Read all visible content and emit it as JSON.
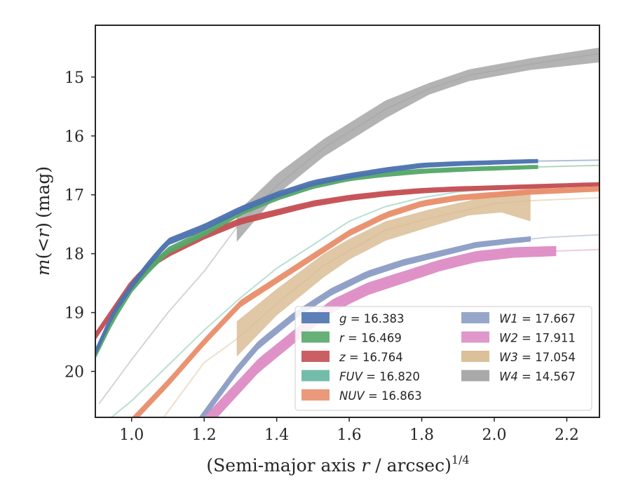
{
  "chart_data": {
    "type": "line",
    "xlabel": "(Semi-major axis r / arcsec)",
    "xlabel_var": "r",
    "xlabel_pre": "(Semi-major axis ",
    "xlabel_post": " / arcsec)",
    "xlabel_exp": "1/4",
    "ylabel_var": "m(<r)",
    "ylabel_m": "m",
    "ylabel_paren_open": "(",
    "ylabel_lt": "<",
    "ylabel_r": "r",
    "ylabel_paren_close": ")",
    "ylabel_unit": "(mag)",
    "xlim": [
      0.9,
      2.29
    ],
    "ylim": [
      20.78,
      14.12
    ],
    "y_inverted": true,
    "xticks": [
      "1.0",
      "1.2",
      "1.4",
      "1.6",
      "1.8",
      "2.0",
      "2.2"
    ],
    "xtick_values": [
      1.0,
      1.2,
      1.4,
      1.6,
      1.8,
      2.0,
      2.2
    ],
    "yticks": [
      "15",
      "16",
      "17",
      "18",
      "19",
      "20"
    ],
    "ytick_values": [
      15,
      16,
      17,
      18,
      19,
      20
    ],
    "grid": false,
    "legend_position": "lower-right",
    "legend_columns": 2,
    "series": [
      {
        "name": "g = 16.383",
        "band": "g",
        "mag": "16.383",
        "color": "#4c72b0",
        "points": [
          [
            0.9,
            19.68
          ],
          [
            0.95,
            19.0
          ],
          [
            1.0,
            18.55
          ],
          [
            1.05,
            18.15
          ],
          [
            1.1,
            17.8
          ],
          [
            1.2,
            17.55
          ],
          [
            1.3,
            17.25
          ],
          [
            1.4,
            17.0
          ],
          [
            1.5,
            16.8
          ],
          [
            1.6,
            16.68
          ],
          [
            1.7,
            16.58
          ],
          [
            1.8,
            16.5
          ],
          [
            1.9,
            16.47
          ],
          [
            2.0,
            16.45
          ],
          [
            2.1,
            16.43
          ],
          [
            2.29,
            16.41
          ]
        ],
        "width_mag": [
          0.06,
          0.03
        ],
        "solid_max_x": 2.12
      },
      {
        "name": "r = 16.469",
        "band": "r",
        "mag": "16.469",
        "color": "#55a868",
        "points": [
          [
            0.9,
            19.72
          ],
          [
            0.95,
            19.1
          ],
          [
            1.0,
            18.6
          ],
          [
            1.05,
            18.25
          ],
          [
            1.1,
            17.95
          ],
          [
            1.2,
            17.65
          ],
          [
            1.3,
            17.3
          ],
          [
            1.4,
            17.05
          ],
          [
            1.5,
            16.85
          ],
          [
            1.6,
            16.72
          ],
          [
            1.7,
            16.65
          ],
          [
            1.8,
            16.6
          ],
          [
            1.9,
            16.57
          ],
          [
            2.0,
            16.55
          ],
          [
            2.1,
            16.53
          ],
          [
            2.29,
            16.5
          ]
        ],
        "width_mag": [
          0.06,
          0.03
        ],
        "solid_max_x": 2.12
      },
      {
        "name": "z = 16.764",
        "band": "z",
        "mag": "16.764",
        "color": "#c44e52",
        "points": [
          [
            0.9,
            19.4
          ],
          [
            0.95,
            18.95
          ],
          [
            1.0,
            18.5
          ],
          [
            1.05,
            18.2
          ],
          [
            1.1,
            18.0
          ],
          [
            1.2,
            17.7
          ],
          [
            1.3,
            17.45
          ],
          [
            1.4,
            17.3
          ],
          [
            1.5,
            17.15
          ],
          [
            1.6,
            17.05
          ],
          [
            1.7,
            16.98
          ],
          [
            1.8,
            16.93
          ],
          [
            1.9,
            16.9
          ],
          [
            2.0,
            16.88
          ],
          [
            2.1,
            16.86
          ],
          [
            2.29,
            16.82
          ]
        ],
        "width_mag": [
          0.06,
          0.03
        ],
        "solid_max_x": 2.29
      },
      {
        "name": "FUV = 16.820",
        "band": "FUV",
        "mag": "16.820",
        "color": "#64b5a0",
        "points": [
          [
            0.9,
            21.0
          ],
          [
            1.0,
            20.5
          ],
          [
            1.1,
            19.9
          ],
          [
            1.2,
            19.3
          ],
          [
            1.3,
            18.75
          ],
          [
            1.4,
            18.25
          ],
          [
            1.5,
            17.85
          ],
          [
            1.6,
            17.45
          ],
          [
            1.7,
            17.2
          ],
          [
            1.8,
            17.05
          ],
          [
            1.9,
            16.95
          ],
          [
            2.0,
            16.9
          ],
          [
            2.1,
            16.87
          ],
          [
            2.29,
            16.84
          ]
        ],
        "width_mag": [
          0.05,
          0.03
        ],
        "solid_max_x": 0.0
      },
      {
        "name": "NUV = 16.863",
        "band": "NUV",
        "mag": "16.863",
        "color": "#e88e6c",
        "points": [
          [
            1.0,
            20.85
          ],
          [
            1.1,
            20.2
          ],
          [
            1.2,
            19.5
          ],
          [
            1.3,
            18.85
          ],
          [
            1.4,
            18.45
          ],
          [
            1.5,
            18.05
          ],
          [
            1.6,
            17.65
          ],
          [
            1.7,
            17.35
          ],
          [
            1.8,
            17.15
          ],
          [
            1.9,
            17.05
          ],
          [
            2.0,
            17.0
          ],
          [
            2.1,
            16.95
          ],
          [
            2.29,
            16.9
          ]
        ],
        "width_mag": [
          0.06,
          0.04
        ],
        "solid_max_x": 2.29
      },
      {
        "name": "W1 = 17.667",
        "band": "W1",
        "mag": "17.667",
        "color": "#8c9dc4",
        "points": [
          [
            1.18,
            20.9
          ],
          [
            1.29,
            19.98
          ],
          [
            1.35,
            19.55
          ],
          [
            1.45,
            19.05
          ],
          [
            1.55,
            18.65
          ],
          [
            1.65,
            18.35
          ],
          [
            1.75,
            18.15
          ],
          [
            1.85,
            18.0
          ],
          [
            1.95,
            17.85
          ],
          [
            2.05,
            17.78
          ],
          [
            2.15,
            17.72
          ],
          [
            2.29,
            17.68
          ]
        ],
        "width_mag": [
          0.07,
          0.04
        ],
        "solid_max_x": 2.1
      },
      {
        "name": "W2 = 17.911",
        "band": "W2",
        "mag": "17.911",
        "color": "#dd8cc4",
        "points": [
          [
            1.2,
            20.9
          ],
          [
            1.29,
            20.3
          ],
          [
            1.35,
            19.9
          ],
          [
            1.45,
            19.4
          ],
          [
            1.55,
            18.9
          ],
          [
            1.65,
            18.6
          ],
          [
            1.75,
            18.4
          ],
          [
            1.85,
            18.2
          ],
          [
            1.95,
            18.05
          ],
          [
            2.05,
            17.98
          ],
          [
            2.15,
            17.96
          ],
          [
            2.29,
            17.93
          ]
        ],
        "width_mag": [
          0.12,
          0.08
        ],
        "solid_max_x": 2.17
      },
      {
        "name": "W3 = 17.054",
        "band": "W3",
        "mag": "17.054",
        "color": "#d8b98e",
        "points": [
          [
            1.08,
            20.85
          ],
          [
            1.2,
            19.85
          ],
          [
            1.29,
            19.45
          ],
          [
            1.4,
            18.85
          ],
          [
            1.53,
            18.2
          ],
          [
            1.6,
            17.95
          ],
          [
            1.7,
            17.6
          ],
          [
            1.82,
            17.4
          ],
          [
            1.93,
            17.25
          ],
          [
            2.0,
            17.15
          ],
          [
            2.1,
            17.1
          ],
          [
            2.29,
            17.05
          ]
        ],
        "upper": [
          [
            1.29,
            19.15
          ],
          [
            1.4,
            18.6
          ],
          [
            1.53,
            18.0
          ],
          [
            1.6,
            17.75
          ],
          [
            1.7,
            17.45
          ],
          [
            1.82,
            17.25
          ],
          [
            1.93,
            17.1
          ],
          [
            2.02,
            16.95
          ],
          [
            2.1,
            16.93
          ]
        ],
        "lower": [
          [
            1.29,
            19.75
          ],
          [
            1.4,
            19.05
          ],
          [
            1.53,
            18.4
          ],
          [
            1.6,
            18.1
          ],
          [
            1.7,
            17.78
          ],
          [
            1.82,
            17.55
          ],
          [
            1.93,
            17.35
          ],
          [
            2.02,
            17.3
          ],
          [
            2.1,
            17.45
          ]
        ],
        "solid_min_x": 1.29,
        "solid_max_x": 2.1
      },
      {
        "name": "W4 = 14.567",
        "band": "W4",
        "mag": "14.567",
        "color": "#a0a0a0",
        "points": [
          [
            0.91,
            20.55
          ],
          [
            1.0,
            19.8
          ],
          [
            1.1,
            19.0
          ],
          [
            1.2,
            18.3
          ],
          [
            1.29,
            17.55
          ],
          [
            1.4,
            16.85
          ],
          [
            1.53,
            16.2
          ],
          [
            1.7,
            15.55
          ],
          [
            1.82,
            15.2
          ],
          [
            1.93,
            14.97
          ],
          [
            2.1,
            14.78
          ],
          [
            2.29,
            14.6
          ]
        ],
        "upper": [
          [
            1.29,
            17.3
          ],
          [
            1.4,
            16.65
          ],
          [
            1.53,
            16.05
          ],
          [
            1.7,
            15.4
          ],
          [
            1.82,
            15.1
          ],
          [
            1.93,
            14.87
          ],
          [
            2.1,
            14.68
          ],
          [
            2.29,
            14.5
          ]
        ],
        "lower": [
          [
            1.29,
            17.8
          ],
          [
            1.4,
            17.0
          ],
          [
            1.53,
            16.35
          ],
          [
            1.7,
            15.7
          ],
          [
            1.82,
            15.3
          ],
          [
            1.93,
            15.07
          ],
          [
            2.1,
            14.88
          ],
          [
            2.29,
            14.75
          ]
        ],
        "solid_min_x": 1.29,
        "solid_max_x": 2.29
      }
    ],
    "legend_order": [
      [
        0,
        1,
        2,
        3,
        4
      ],
      [
        5,
        6,
        7,
        8
      ]
    ]
  }
}
